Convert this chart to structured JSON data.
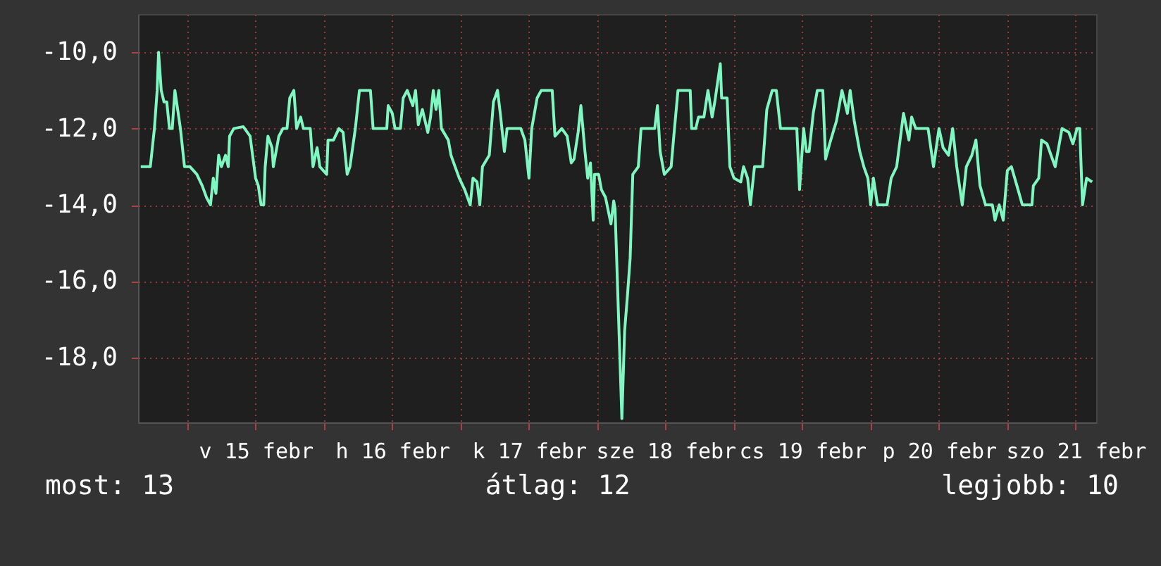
{
  "chart_data": {
    "type": "line",
    "x": [
      "--02-14T15:50",
      "--02-14T17:31",
      "--02-14T18:14",
      "--02-14T18:43",
      "--02-14T18:58",
      "--02-14T19:26",
      "--02-14T19:55",
      "--02-14T20:24",
      "--02-14T20:53",
      "--02-14T21:22",
      "--02-14T21:50",
      "--02-14T22:19",
      "--02-14T22:48",
      "--02-14T23:31",
      "--02-15T00:29",
      "--02-15T01:41",
      "--02-15T02:38",
      "--02-15T03:22",
      "--02-15T04:05",
      "--02-15T04:34",
      "--02-15T05:02",
      "--02-15T05:31",
      "--02-15T06:00",
      "--02-15T06:43",
      "--02-15T07:12",
      "--02-15T07:26",
      "--02-15T08:10",
      "--02-15T09:50",
      "--02-15T11:02",
      "--02-15T12:00",
      "--02-15T12:29",
      "--02-15T12:58",
      "--02-15T13:26",
      "--02-15T13:41",
      "--02-15T14:10",
      "--02-15T14:53",
      "--02-15T15:07",
      "--02-15T16:05",
      "--02-15T16:48",
      "--02-15T17:31",
      "--02-15T18:00",
      "--02-15T18:43",
      "--02-15T19:12",
      "--02-15T19:55",
      "--02-15T20:24",
      "--02-15T21:36",
      "--02-15T22:05",
      "--02-15T22:48",
      "--02-15T23:17",
      "--02-16T00:29",
      "--02-16T00:43",
      "--02-16T01:41",
      "--02-16T02:38",
      "--02-16T03:22",
      "--02-16T04:05",
      "--02-16T04:34",
      "--02-16T05:31",
      "--02-16T06:14",
      "--02-16T08:10",
      "--02-16T08:38",
      "--02-16T11:02",
      "--02-16T11:17",
      "--02-16T12:00",
      "--02-16T12:29",
      "--02-16T13:26",
      "--02-16T13:55",
      "--02-16T14:38",
      "--02-16T15:36",
      "--02-16T16:05",
      "--02-16T16:34",
      "--02-16T17:17",
      "--02-16T18:14",
      "--02-16T18:43",
      "--02-16T19:12",
      "--02-16T19:41",
      "--02-16T20:10",
      "--02-16T20:38",
      "--02-16T21:50",
      "--02-16T22:19",
      "--02-16T23:02",
      "--02-16T23:46",
      "--02-17T00:43",
      "--02-17T01:41",
      "--02-17T02:10",
      "--02-17T02:53",
      "--02-17T03:22",
      "--02-17T03:50",
      "--02-17T05:02",
      "--02-17T05:46",
      "--02-17T06:29",
      "--02-17T06:58",
      "--02-17T07:41",
      "--02-17T08:10",
      "--02-17T10:34",
      "--02-17T11:17",
      "--02-17T12:00",
      "--02-17T12:29",
      "--02-17T13:26",
      "--02-17T14:10",
      "--02-17T16:05",
      "--02-17T16:34",
      "--02-17T17:46",
      "--02-17T18:43",
      "--02-17T19:26",
      "--02-17T19:55",
      "--02-17T20:38",
      "--02-17T21:07",
      "--02-17T21:50",
      "--02-17T22:19",
      "--02-17T22:48",
      "--02-17T23:17",
      "--02-17T23:31",
      "--02-18T00:14",
      "--02-18T00:43",
      "--02-18T01:26",
      "--02-18T02:24",
      "--02-18T02:53",
      "--02-18T03:07",
      "--02-18T03:50",
      "--02-18T04:19",
      "--02-18T04:48",
      "--02-18T05:17",
      "--02-18T05:46",
      "--02-18T06:14",
      "--02-18T07:12",
      "--02-18T07:41",
      "--02-18T10:05",
      "--02-18T10:34",
      "--02-18T11:02",
      "--02-18T11:46",
      "--02-18T12:58",
      "--02-18T13:26",
      "--02-18T14:10",
      "--02-18T16:19",
      "--02-18T16:34",
      "--02-18T17:17",
      "--02-18T17:46",
      "--02-18T18:43",
      "--02-18T19:26",
      "--02-18T20:10",
      "--02-18T20:38",
      "--02-18T21:36",
      "--02-18T21:50",
      "--02-18T22:48",
      "--02-18T23:17",
      "--02-19T00:00",
      "--02-19T01:12",
      "--02-19T01:41",
      "--02-19T02:24",
      "--02-19T02:53",
      "--02-19T03:36",
      "--02-19T05:02",
      "--02-19T05:46",
      "--02-19T06:43",
      "--02-19T07:26",
      "--02-19T08:10",
      "--02-19T11:02",
      "--02-19T11:31",
      "--02-19T12:14",
      "--02-19T12:43",
      "--02-19T13:12",
      "--02-19T13:55",
      "--02-19T14:38",
      "--02-19T15:36",
      "--02-19T16:05",
      "--02-19T16:48",
      "--02-19T18:00",
      "--02-19T18:58",
      "--02-19T19:55",
      "--02-19T20:24",
      "--02-19T21:07",
      "--02-19T22:05",
      "--02-19T22:48",
      "--02-19T23:31",
      "--02-20T00:00",
      "--02-20T00:29",
      "--02-20T01:12",
      "--02-20T02:53",
      "--02-20T03:36",
      "--02-20T04:34",
      "--02-20T05:46",
      "--02-20T06:43",
      "--02-20T07:12",
      "--02-20T07:55",
      "--02-20T10:05",
      "--02-20T11:02",
      "--02-20T12:00",
      "--02-20T12:43",
      "--02-20T13:41",
      "--02-20T14:24",
      "--02-20T15:07",
      "--02-20T16:05",
      "--02-20T16:48",
      "--02-20T17:46",
      "--02-20T18:29",
      "--02-20T19:12",
      "--02-20T20:10",
      "--02-20T21:22",
      "--02-20T21:50",
      "--02-20T22:34",
      "--02-20T23:17",
      "--02-21T00:00",
      "--02-21T00:43",
      "--02-21T01:41",
      "--02-21T02:38",
      "--02-21T04:19",
      "--02-21T04:34",
      "--02-21T05:31",
      "--02-21T06:00",
      "--02-21T06:58",
      "--02-21T07:55",
      "--02-21T08:24",
      "--02-21T09:36",
      "--02-21T10:48",
      "--02-21T11:31",
      "--02-21T12:14",
      "--02-21T12:43",
      "--02-21T13:12",
      "--02-21T13:55",
      "--02-21T14:53"
    ],
    "series": [
      {
        "color": "#80f7c0",
        "values": [
          -13,
          -13,
          -12,
          -11,
          -10,
          -11,
          -11.3,
          -11.3,
          -12,
          -12,
          -11,
          -11.5,
          -12,
          -13,
          -13,
          -13.2,
          -13.5,
          -13.8,
          -14,
          -13.3,
          -13.7,
          -12.7,
          -13,
          -12.7,
          -13,
          -12.2,
          -12,
          -11.95,
          -12.2,
          -13.3,
          -13.5,
          -14,
          -14,
          -13,
          -12.2,
          -12.5,
          -13,
          -12.2,
          -12,
          -12,
          -11.2,
          -11,
          -12,
          -11.7,
          -12,
          -12,
          -13,
          -12.5,
          -13,
          -13.2,
          -12.3,
          -12.3,
          -12,
          -12.1,
          -13.2,
          -13,
          -12,
          -11,
          -11,
          -12,
          -12,
          -11.4,
          -11.6,
          -12,
          -12,
          -11.2,
          -11,
          -11.4,
          -11,
          -11.9,
          -11.5,
          -12.1,
          -11.7,
          -11,
          -11.5,
          -11,
          -12,
          -12.3,
          -12.7,
          -13,
          -13.3,
          -13.6,
          -14,
          -13.3,
          -13.4,
          -14,
          -13,
          -12.7,
          -11.3,
          -11,
          -11.6,
          -12.6,
          -12,
          -12,
          -12.3,
          -13.3,
          -12,
          -11.2,
          -11,
          -11,
          -12.2,
          -12,
          -12.2,
          -12.9,
          -12.8,
          -12.1,
          -11.4,
          -12.6,
          -13.3,
          -12.9,
          -14.4,
          -13.2,
          -13.2,
          -13.6,
          -13.8,
          -14.5,
          -13.9,
          -14.1,
          -17.4,
          -19.6,
          -17.3,
          -16.4,
          -15.4,
          -13.2,
          -13,
          -12,
          -12,
          -11.4,
          -12.6,
          -13.2,
          -13,
          -12.2,
          -11,
          -11,
          -12,
          -12,
          -11.7,
          -11.7,
          -11,
          -11.7,
          -11.3,
          -10.3,
          -11.2,
          -11.2,
          -13,
          -13.3,
          -13.4,
          -13,
          -13.3,
          -14,
          -13,
          -13,
          -11.5,
          -11,
          -11,
          -12,
          -12,
          -13.6,
          -12,
          -12.6,
          -12.6,
          -11.6,
          -11,
          -11,
          -12.8,
          -12.4,
          -11.8,
          -11,
          -11.6,
          -11,
          -11.8,
          -12.6,
          -13,
          -13.3,
          -14,
          -13.3,
          -14,
          -14,
          -13.3,
          -13,
          -11.6,
          -12.3,
          -11.7,
          -12,
          -12,
          -13,
          -12,
          -12.5,
          -12.7,
          -12,
          -13,
          -14,
          -13,
          -12.7,
          -12.3,
          -13.5,
          -14,
          -14,
          -14.4,
          -14,
          -14.4,
          -13.1,
          -13,
          -13.5,
          -14,
          -14,
          -13.5,
          -13.3,
          -12.3,
          -12.4,
          -12.8,
          -13,
          -12,
          -12.1,
          -12.4,
          -12,
          -12,
          -14,
          -13.3,
          -13.4
        ]
      }
    ],
    "xlim": [
      "--02-14T15:22",
      "--02-21T15:36"
    ],
    "xticks": [
      {
        "value": "--02-15T00:00",
        "label": null
      },
      {
        "value": "--02-15T12:00",
        "label": "v 15 febr"
      },
      {
        "value": "--02-16T00:00",
        "label": null
      },
      {
        "value": "--02-16T12:00",
        "label": "h 16 febr"
      },
      {
        "value": "--02-17T00:00",
        "label": null
      },
      {
        "value": "--02-17T12:00",
        "label": "k 17 febr"
      },
      {
        "value": "--02-18T00:00",
        "label": null
      },
      {
        "value": "--02-18T12:00",
        "label": "sze 18 febr"
      },
      {
        "value": "--02-19T00:00",
        "label": null
      },
      {
        "value": "--02-19T12:00",
        "label": "cs 19 febr"
      },
      {
        "value": "--02-20T00:00",
        "label": null
      },
      {
        "value": "--02-20T12:00",
        "label": "p 20 febr"
      },
      {
        "value": "--02-21T00:00",
        "label": null
      },
      {
        "value": "--02-21T12:00",
        "label": "szo 21 febr"
      }
    ],
    "ylim": [
      -19.7,
      -9
    ],
    "yticks": [
      {
        "value": -18,
        "label": "-18,0"
      },
      {
        "value": -16,
        "label": "-16,0"
      },
      {
        "value": -14,
        "label": "-14,0"
      },
      {
        "value": -12,
        "label": "-12,0"
      },
      {
        "value": -10,
        "label": "-10,0"
      }
    ],
    "grid": true,
    "annotations": [
      "most: 13",
      "átlag: 12",
      "legjobb: 10"
    ]
  }
}
